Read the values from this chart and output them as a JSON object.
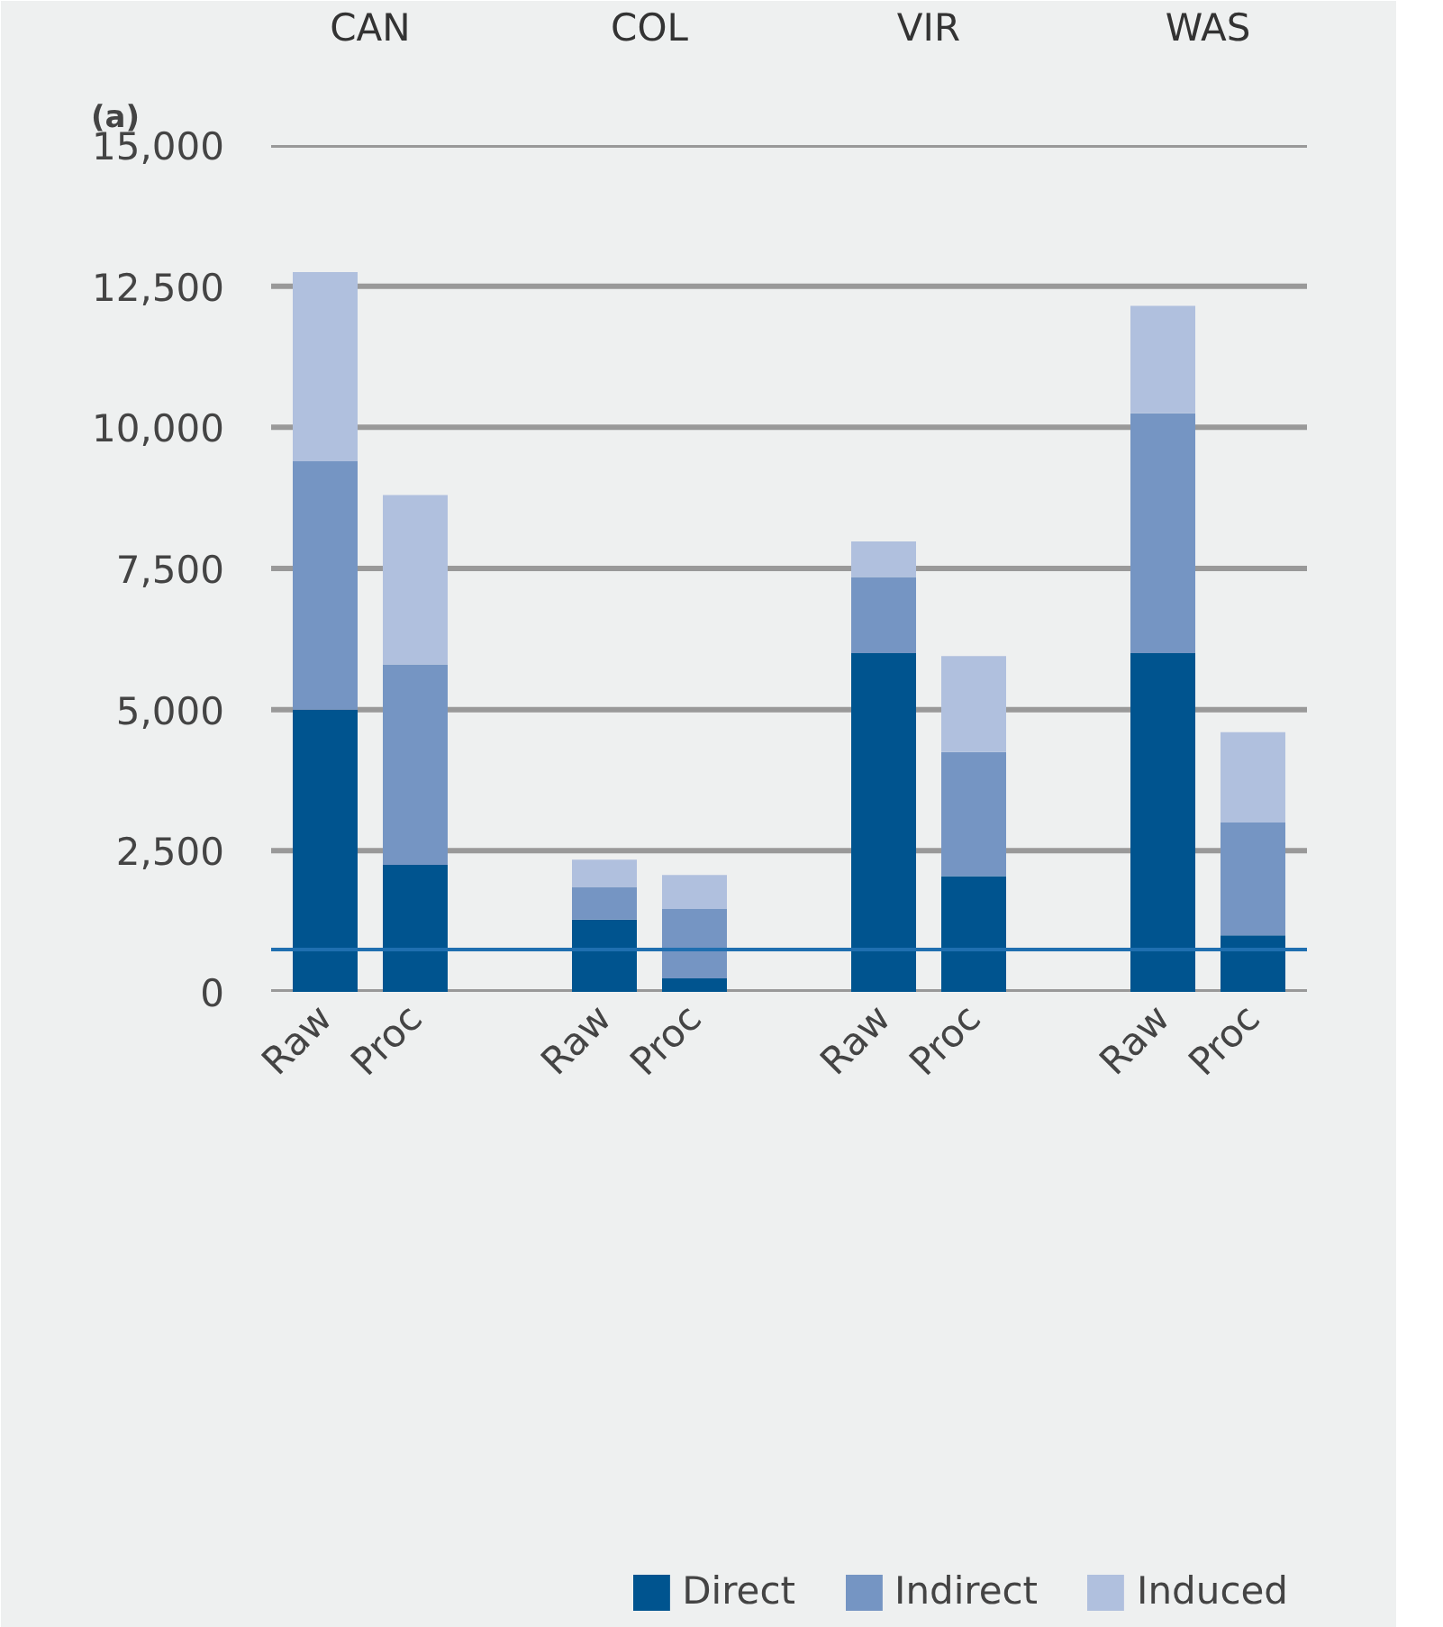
{
  "chart_data": {
    "type": "bar",
    "title": "(a)",
    "stacked": true,
    "categories": [
      "Raw",
      "Proc",
      "Raw",
      "Proc",
      "Raw",
      "Proc",
      "Raw",
      "Proc"
    ],
    "annotations": [
      "CAN",
      "COL",
      "VIR",
      "WAS"
    ],
    "series": [
      {
        "name": "Direct",
        "color": "#00548f",
        "values": [
          5000,
          2250,
          1280,
          240,
          6000,
          2050,
          6000,
          1000
        ]
      },
      {
        "name": "Indirect",
        "color": "#7595c3",
        "values": [
          4400,
          3550,
          580,
          1230,
          1350,
          2200,
          4250,
          2000
        ]
      },
      {
        "name": "Induced",
        "color": "#b0c0de",
        "values": [
          3350,
          3000,
          480,
          600,
          630,
          1700,
          1900,
          1600
        ]
      }
    ],
    "ylim": [
      0,
      15000
    ],
    "yticks": [
      {
        "value": 0,
        "label": "0"
      },
      {
        "value": 2500,
        "label": "2,500"
      },
      {
        "value": 5000,
        "label": "5,000"
      },
      {
        "value": 7500,
        "label": "7,500"
      },
      {
        "value": 10000,
        "label": "10,000"
      },
      {
        "value": 12500,
        "label": "12,500"
      },
      {
        "value": 15000,
        "label": "15,000"
      }
    ],
    "ref_lines": [
      {
        "axis": "y",
        "value": 750,
        "color": "#1f6fb0"
      }
    ],
    "grid": "y",
    "legend": "bottom"
  }
}
